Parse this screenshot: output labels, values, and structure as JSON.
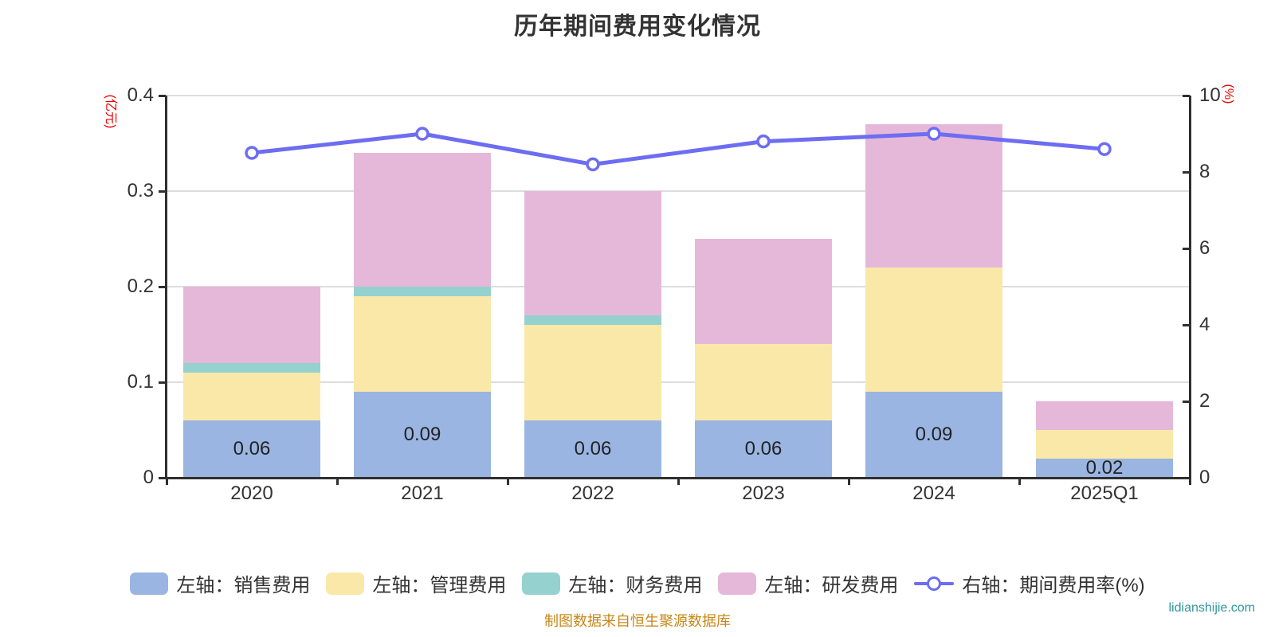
{
  "chart_data": {
    "type": "bar",
    "title": "历年期间费用变化情况",
    "categories": [
      "2020",
      "2021",
      "2022",
      "2023",
      "2024",
      "2025Q1"
    ],
    "series": [
      {
        "name": "左轴：销售费用",
        "type": "bar",
        "axis": "left",
        "stack": true,
        "color": "#9ab5e1",
        "values": [
          0.06,
          0.09,
          0.06,
          0.06,
          0.09,
          0.02
        ]
      },
      {
        "name": "左轴：管理费用",
        "type": "bar",
        "axis": "left",
        "stack": true,
        "color": "#f9e8a8",
        "values": [
          0.05,
          0.1,
          0.1,
          0.08,
          0.13,
          0.03
        ]
      },
      {
        "name": "左轴：财务费用",
        "type": "bar",
        "axis": "left",
        "stack": true,
        "color": "#95d1ce",
        "values": [
          0.01,
          0.01,
          0.01,
          0,
          0,
          0
        ]
      },
      {
        "name": "左轴：研发费用",
        "type": "bar",
        "axis": "left",
        "stack": true,
        "color": "#e5b8d9",
        "values": [
          0.08,
          0.14,
          0.13,
          0.11,
          0.15,
          0.03
        ]
      },
      {
        "name": "右轴：期间费用率(%)",
        "type": "line",
        "axis": "right",
        "color": "#6d6df2",
        "values": [
          8.5,
          9.0,
          8.2,
          8.8,
          9.0,
          8.6
        ]
      }
    ],
    "bar_labels": [
      "0.06",
      "0.09",
      "0.06",
      "0.06",
      "0.09",
      "0.02"
    ],
    "left_axis": {
      "unit": "(亿元)",
      "min": 0,
      "max": 0.4,
      "ticks": [
        0,
        0.1,
        0.2,
        0.3,
        0.4
      ]
    },
    "right_axis": {
      "unit": "(%)",
      "min": 0,
      "max": 10,
      "ticks": [
        0,
        2,
        4,
        6,
        8,
        10
      ]
    },
    "grid": true,
    "stacked": true,
    "legend_position": "bottom"
  },
  "footer": {
    "source_note": "制图数据来自恒生聚源数据库",
    "watermark": "lidianshijie.com"
  },
  "colors": {
    "title": "#333333",
    "axis_line": "#2f2f2f",
    "grid_line": "#dddddd",
    "tick_label": "#333333",
    "axis_unit": "#e60000",
    "bar_label": "#222222",
    "source_note": "#c6881a",
    "watermark": "#2e96a0"
  }
}
